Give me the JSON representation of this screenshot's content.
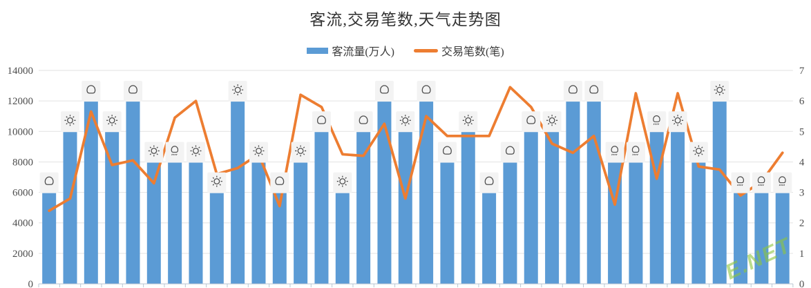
{
  "chart_data": {
    "type": "bar+line combo",
    "title": "客流,交易笔数,天气走势图",
    "legend_position": "top",
    "grid": "horizontal",
    "series": [
      {
        "name": "客流量(万人)",
        "type": "bar",
        "axis": "left",
        "color": "#5B9BD5",
        "values": [
          6000,
          10000,
          12000,
          10000,
          12000,
          8000,
          8000,
          8000,
          6000,
          12000,
          8000,
          6000,
          8000,
          10000,
          6000,
          10000,
          12000,
          10000,
          12000,
          8000,
          10000,
          6000,
          8000,
          10000,
          10000,
          12000,
          12000,
          8000,
          8000,
          10000,
          10000,
          8000,
          12000,
          6000,
          6000,
          6000
        ]
      },
      {
        "name": "交易笔数(笔)",
        "type": "line",
        "axis": "right",
        "color": "#ED7D31",
        "values": [
          2.4,
          2.8,
          5.65,
          3.9,
          4.05,
          3.3,
          5.45,
          6.0,
          3.6,
          3.8,
          4.25,
          2.55,
          6.2,
          5.8,
          4.25,
          4.2,
          5.25,
          2.8,
          5.5,
          4.85,
          4.85,
          4.85,
          6.45,
          5.8,
          4.6,
          4.3,
          4.85,
          2.6,
          6.25,
          3.45,
          6.25,
          3.85,
          3.75,
          2.9,
          3.35,
          4.3
        ]
      }
    ],
    "weather_icons": [
      "cloudy",
      "sunny",
      "cloudy",
      "sunny",
      "cloudy",
      "sunny",
      "rain",
      "sunny",
      "sunny",
      "sunny",
      "sunny",
      "cloudy",
      "sunny",
      "cloudy",
      "sunny",
      "cloudy",
      "cloudy",
      "sunny",
      "cloudy",
      "cloudy",
      "sunny",
      "cloudy",
      "cloudy",
      "cloudy",
      "sunny",
      "cloudy",
      "cloudy",
      "rain",
      "rain",
      "rain",
      "sunny",
      "sunny",
      "sunny",
      "rain",
      "rain",
      "rain"
    ],
    "left_axis": {
      "min": 0,
      "max": 14000,
      "step": 2000,
      "tick_labels": [
        "0",
        "2000",
        "4000",
        "6000",
        "8000",
        "10000",
        "12000",
        "14000"
      ]
    },
    "right_axis": {
      "min": 0,
      "max": 7,
      "step": 1,
      "tick_labels": [
        "0",
        "1",
        "2",
        "3",
        "4",
        "5",
        "6",
        "7"
      ]
    },
    "watermark": {
      "text": "E.NET",
      "color": "#8dc63f"
    },
    "colors": {
      "bar": "#5B9BD5",
      "line": "#ED7D31",
      "gridline": "#e2e2e2",
      "axis_line": "#b9c6d2",
      "icon_bg": "#f3f3f3",
      "icon_glyph": "#4d4d4d",
      "title_text": "#333333",
      "axis_text": "#4d4d4d"
    }
  }
}
